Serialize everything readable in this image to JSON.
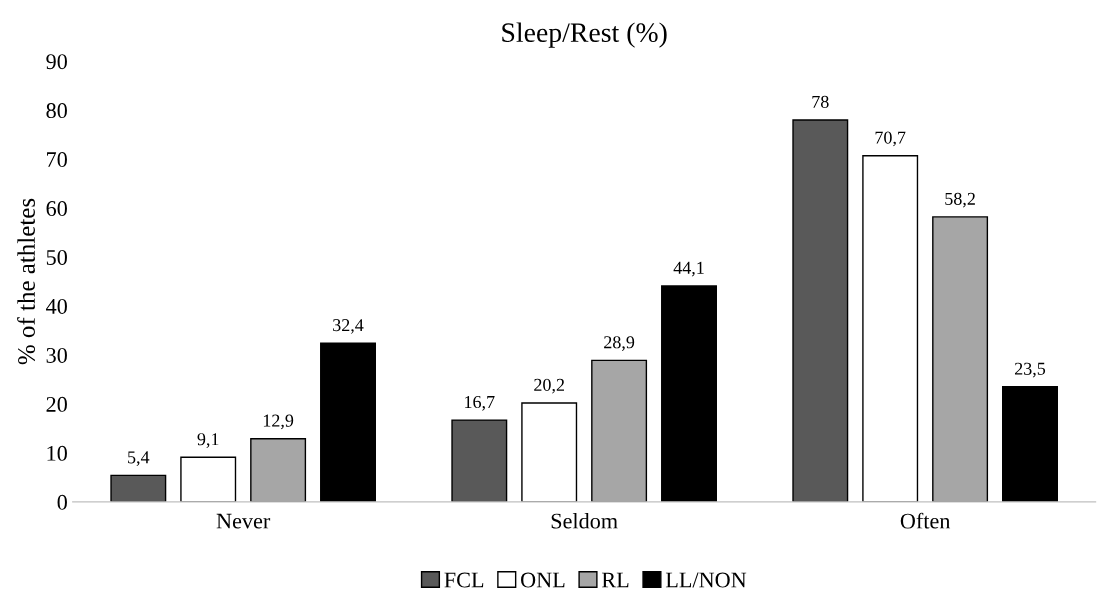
{
  "chart_data": {
    "type": "bar",
    "title": "Sleep/Rest (%)",
    "ylabel": "% of the athletes",
    "categories": [
      "Never",
      "Seldom",
      "Often"
    ],
    "series": [
      {
        "name": "FCL",
        "color": "#595959",
        "values": [
          5.4,
          16.7,
          78
        ],
        "value_labels": [
          "5,4",
          "16,7",
          "78"
        ]
      },
      {
        "name": "ONL",
        "color": "#ffffff",
        "values": [
          9.1,
          20.2,
          70.7
        ],
        "value_labels": [
          "9,1",
          "20,2",
          "70,7"
        ]
      },
      {
        "name": "RL",
        "color": "#a6a6a6",
        "values": [
          12.9,
          28.9,
          58.2
        ],
        "value_labels": [
          "12,9",
          "28,9",
          "58,2"
        ]
      },
      {
        "name": "LL/NON",
        "color": "#000000",
        "values": [
          32.4,
          44.1,
          23.5
        ],
        "value_labels": [
          "32,4",
          "44,1",
          "23,5"
        ]
      }
    ],
    "ylim": [
      0,
      90
    ],
    "yticks": [
      0,
      10,
      20,
      30,
      40,
      50,
      60,
      70,
      80,
      90
    ],
    "grid": false,
    "legend": "bottom"
  }
}
